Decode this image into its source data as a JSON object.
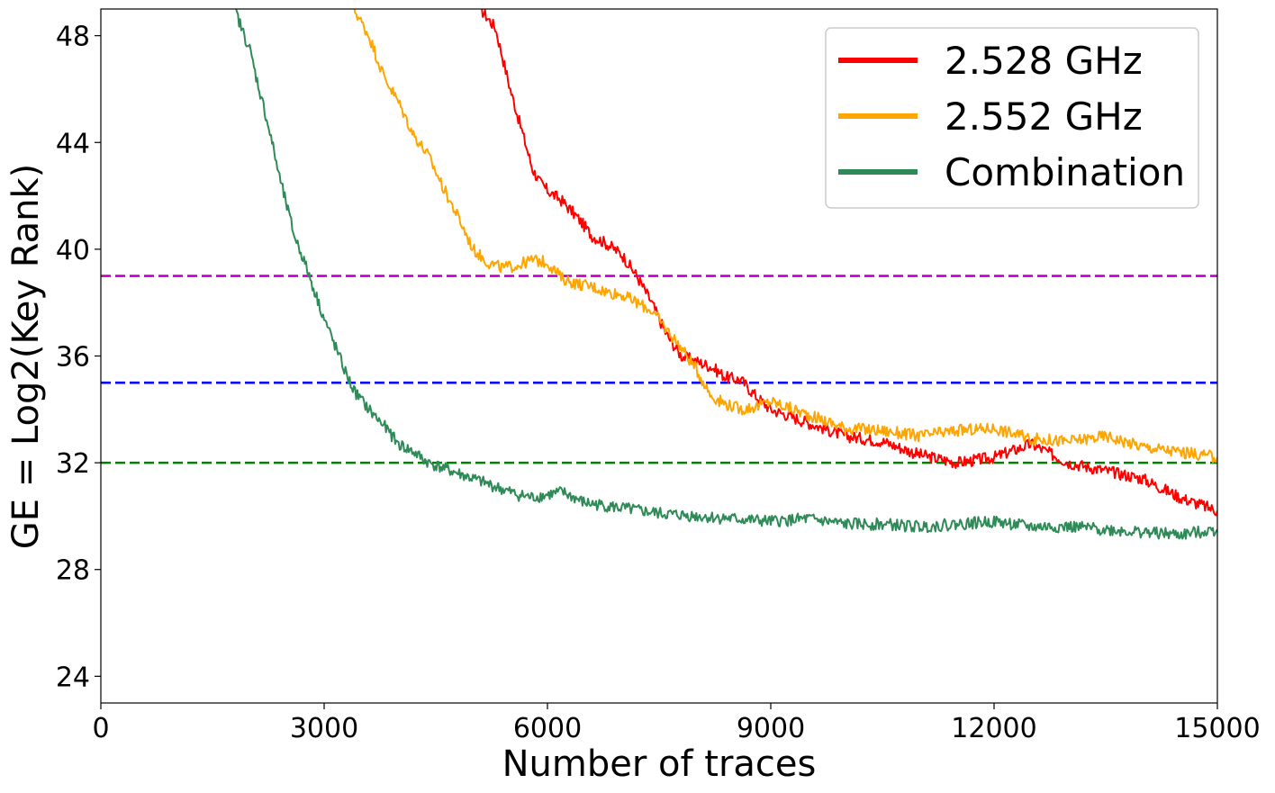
{
  "chart_data": {
    "type": "line",
    "xlabel": "Number of traces",
    "ylabel": "GE = Log2(Key Rank)",
    "xlim": [
      0,
      15000
    ],
    "ylim": [
      23,
      49
    ],
    "xticks": [
      0,
      3000,
      6000,
      9000,
      12000,
      15000
    ],
    "yticks": [
      24,
      28,
      32,
      36,
      40,
      44,
      48
    ],
    "grid": false,
    "legend_position": "top-right",
    "series": [
      {
        "name": "2.528 GHz",
        "color": "#ff0000",
        "x": [
          5100,
          5300,
          5500,
          5700,
          5800,
          5900,
          6000,
          6200,
          6400,
          6600,
          6800,
          7000,
          7200,
          7400,
          7600,
          7800,
          8000,
          8200,
          8400,
          8600,
          8800,
          9000,
          9500,
          10000,
          10500,
          11000,
          11500,
          12000,
          12500,
          13000,
          13500,
          14000,
          14500,
          15000
        ],
        "values": [
          49.0,
          48.3,
          46.0,
          44.0,
          43.0,
          42.5,
          42.2,
          41.8,
          41.2,
          40.5,
          40.2,
          39.8,
          39.0,
          38.0,
          36.8,
          36.0,
          35.8,
          35.6,
          35.2,
          35.1,
          34.5,
          34.0,
          33.5,
          33.0,
          32.8,
          32.3,
          32.0,
          32.2,
          32.7,
          32.0,
          31.7,
          31.4,
          30.7,
          30.2
        ]
      },
      {
        "name": "2.552 GHz",
        "color": "#ffa500",
        "x": [
          3400,
          3600,
          3800,
          4000,
          4200,
          4400,
          4600,
          4800,
          5000,
          5200,
          5400,
          5600,
          5800,
          6000,
          6200,
          6400,
          6600,
          6800,
          7000,
          7200,
          7400,
          7600,
          7800,
          8000,
          8200,
          8400,
          8600,
          8800,
          9000,
          9500,
          10000,
          10500,
          11000,
          11500,
          12000,
          12500,
          13000,
          13500,
          14000,
          14500,
          15000
        ],
        "values": [
          49.0,
          48.0,
          46.5,
          45.5,
          44.3,
          43.5,
          42.3,
          41.2,
          40.0,
          39.5,
          39.3,
          39.4,
          39.6,
          39.5,
          38.9,
          38.7,
          38.6,
          38.4,
          38.3,
          38.0,
          37.7,
          37.0,
          36.3,
          35.5,
          34.5,
          34.2,
          34.0,
          34.1,
          34.3,
          33.8,
          33.3,
          33.2,
          33.0,
          33.2,
          33.3,
          32.9,
          32.8,
          33.0,
          32.6,
          32.4,
          32.2
        ]
      },
      {
        "name": "Combination",
        "color": "#2e8b57",
        "x": [
          1800,
          1900,
          2000,
          2100,
          2200,
          2300,
          2400,
          2500,
          2600,
          2700,
          2800,
          2900,
          3000,
          3100,
          3200,
          3300,
          3400,
          3600,
          3800,
          4000,
          4200,
          4400,
          4600,
          4800,
          5000,
          5200,
          5400,
          5600,
          5800,
          6000,
          6200,
          6500,
          7000,
          7500,
          8000,
          8500,
          9000,
          9500,
          10000,
          10500,
          11000,
          11500,
          12000,
          12500,
          13000,
          13500,
          14000,
          14500,
          15000
        ],
        "values": [
          49.0,
          48.2,
          47.5,
          46.3,
          45.2,
          44.0,
          42.7,
          41.6,
          40.5,
          39.8,
          39.0,
          38.2,
          37.4,
          36.7,
          36.0,
          35.3,
          34.7,
          34.0,
          33.4,
          32.7,
          32.4,
          32.0,
          31.8,
          31.6,
          31.4,
          31.2,
          31.0,
          30.8,
          30.7,
          30.8,
          30.9,
          30.5,
          30.3,
          30.1,
          30.0,
          29.9,
          29.8,
          29.9,
          29.7,
          29.7,
          29.6,
          29.7,
          29.8,
          29.6,
          29.6,
          29.5,
          29.4,
          29.3,
          29.5
        ]
      }
    ],
    "reference_lines": [
      {
        "y": 39,
        "color": "#bf00bf",
        "style": "dashed"
      },
      {
        "y": 35,
        "color": "#0000ff",
        "style": "dashed"
      },
      {
        "y": 32,
        "color": "#008000",
        "style": "dashed"
      }
    ]
  }
}
